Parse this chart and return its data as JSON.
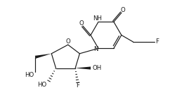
{
  "bg_color": "#ffffff",
  "line_color": "#1a1a1a",
  "lw": 0.85,
  "fs": 6.2,
  "fig_w": 2.42,
  "fig_h": 1.49,
  "dpi": 100,
  "xlim": [
    -0.3,
    10.2
  ],
  "ylim": [
    0.2,
    6.0
  ]
}
